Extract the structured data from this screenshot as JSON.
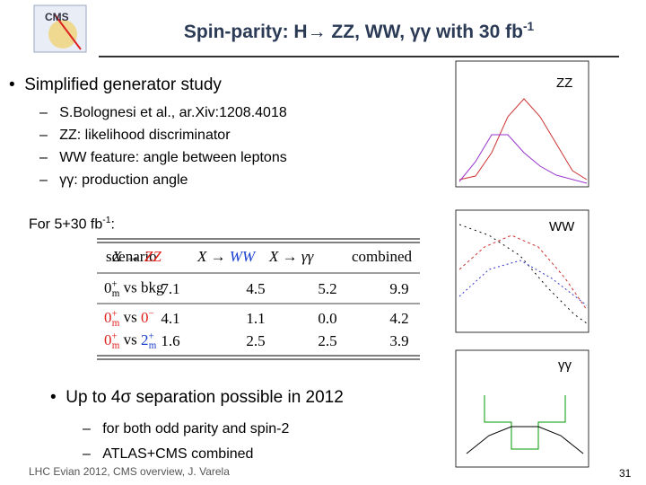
{
  "header": {
    "logo_text": "CMS",
    "title": "Spin-parity: H→ ZZ, WW, γγ with 30 fb",
    "title_sup": "-1"
  },
  "bullets": [
    {
      "text": "Simplified generator study",
      "sub": [
        "S.Bolognesi et al., ar.Xiv:1208.4018",
        "ZZ: likelihood discriminator",
        "WW feature: angle between leptons",
        "γγ: production angle"
      ]
    }
  ],
  "lumi_note": {
    "text": "For 5+30 fb",
    "sup": "-1",
    "tail": ":"
  },
  "table": {
    "header": [
      "scenario",
      {
        "pre": "X →",
        "ch": "ZZ",
        "color": "#e0201b"
      },
      {
        "pre": "X →",
        "ch": "WW",
        "color": "#1a3fcf"
      },
      {
        "pre": "X →",
        "ch": "γγ",
        "color": "#000000"
      },
      "combined"
    ],
    "rows": [
      {
        "label": {
          "base": "0",
          "sup": "+",
          "sub": "m",
          "vs": "vs",
          "alt": "bkg",
          "alt_sup": "",
          "alt_sub": "",
          "color": "#000000",
          "alt_color": "#000000"
        },
        "cells": [
          "7.1",
          "4.5",
          "5.2",
          "9.9"
        ]
      },
      {
        "label": {
          "base": "0",
          "sup": "+",
          "sub": "m",
          "vs": "vs",
          "alt": "0",
          "alt_sup": "−",
          "alt_sub": "",
          "color": "#e0201b",
          "alt_color": "#e0201b"
        },
        "cells": [
          "4.1",
          "1.1",
          "0.0",
          "4.2"
        ]
      },
      {
        "label": {
          "base": "0",
          "sup": "+",
          "sub": "m",
          "vs": "vs",
          "alt": "2",
          "alt_sup": "+",
          "alt_sub": "m",
          "color": "#e0201b",
          "alt_color": "#1a3fcf"
        },
        "cells": [
          "1.6",
          "2.5",
          "2.5",
          "3.9"
        ]
      }
    ]
  },
  "bullets2": [
    {
      "text": "Up to 4σ separation possible in 2012",
      "sub": [
        "for both odd parity and spin-2",
        "ATLAS+CMS combined"
      ]
    }
  ],
  "plots": [
    {
      "label": "ZZ"
    },
    {
      "label": "WW"
    },
    {
      "label": "γγ"
    }
  ],
  "footer": {
    "text": "LHC Evian 2012, CMS overview, J. Varela",
    "page": "31"
  }
}
